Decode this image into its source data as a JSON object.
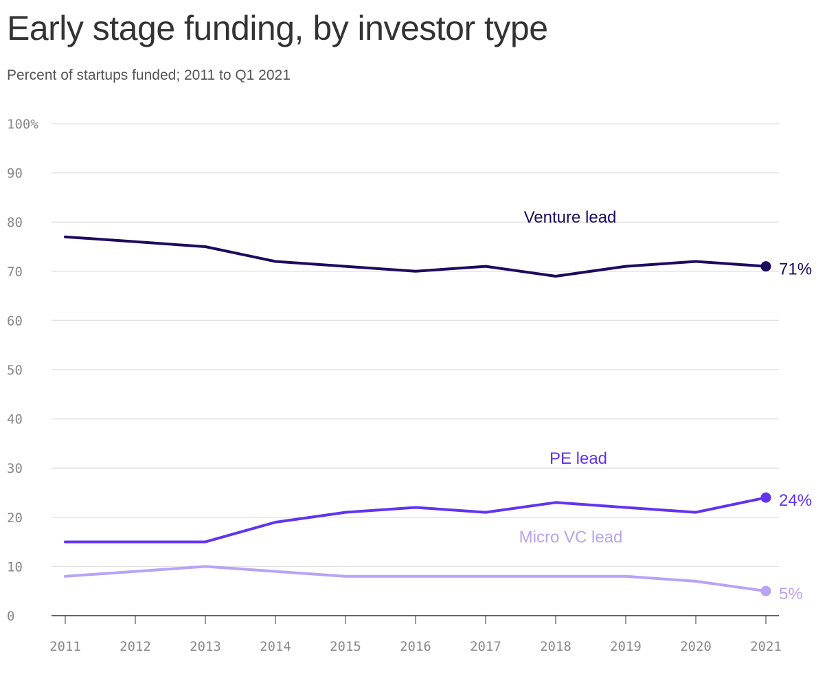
{
  "title": "Early stage funding, by investor type",
  "subtitle": "Percent of startups funded; 2011 to Q1 2021",
  "chart_data": {
    "type": "line",
    "x": [
      2011,
      2012,
      2013,
      2014,
      2015,
      2016,
      2017,
      2018,
      2019,
      2020,
      2021
    ],
    "ylim": [
      0,
      100
    ],
    "yticks": [
      0,
      10,
      20,
      30,
      40,
      50,
      60,
      70,
      80,
      90,
      100
    ],
    "ytick_labels": [
      "0",
      "10",
      "20",
      "30",
      "40",
      "50",
      "60",
      "70",
      "80",
      "90",
      "100%"
    ],
    "grid": true,
    "series": [
      {
        "name": "Venture lead",
        "color": "#1e0a5e",
        "values": [
          77,
          76,
          75,
          72,
          71,
          70,
          71,
          69,
          71,
          72,
          71
        ],
        "end_label": "71%"
      },
      {
        "name": "PE lead",
        "color": "#6233f0",
        "values": [
          15,
          15,
          15,
          19,
          21,
          22,
          21,
          23,
          22,
          21,
          24
        ],
        "end_label": "24%"
      },
      {
        "name": "Micro VC lead",
        "color": "#b8a3f5",
        "values": [
          8,
          9,
          10,
          9,
          8,
          8,
          8,
          8,
          8,
          7,
          5
        ],
        "end_label": "5%"
      }
    ]
  }
}
